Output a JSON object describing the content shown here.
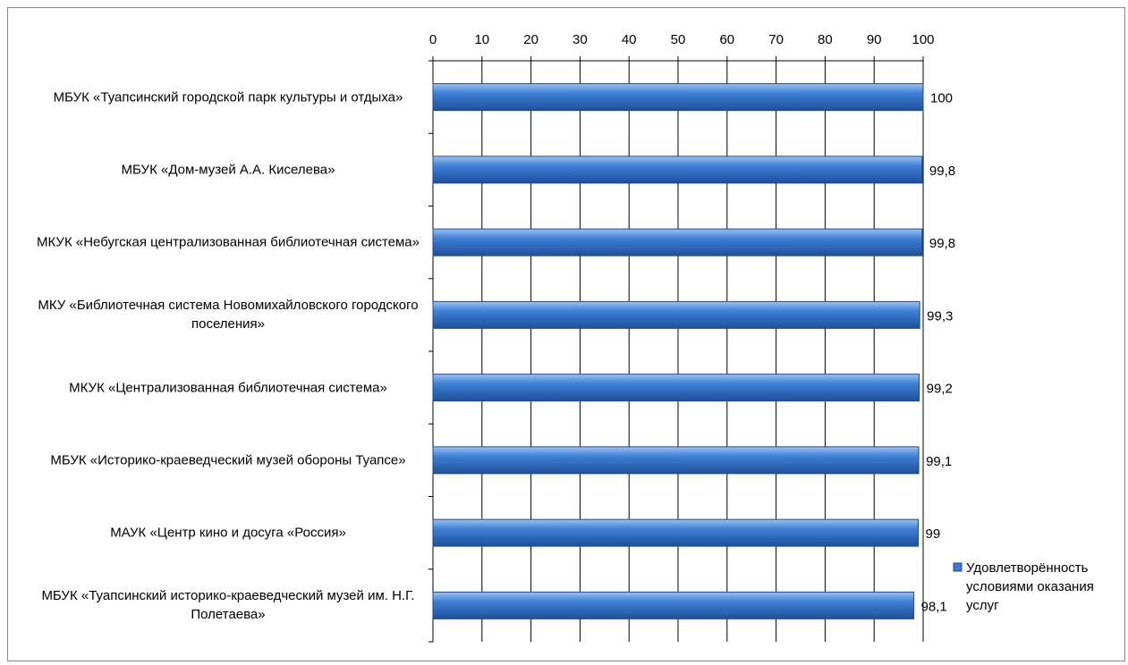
{
  "chart_data": {
    "type": "bar",
    "orientation": "horizontal",
    "categories": [
      "МБУК «Туапсинский городской парк культуры и отдыха»",
      "МБУК «Дом-музей А.А. Киселева»",
      "МКУК «Небугская централизованная библиотечная система»",
      "МКУ «Библиотечная система Новомихайловского городского поселения»",
      "МКУК «Централизованная библиотечная система»",
      "МБУК «Историко-краеведческий музей обороны Туапсе»",
      "МАУК «Центр кино и досуга «Россия»",
      "МБУК «Туапсинский историко-краеведческий музей им. Н.Г. Полетаева»"
    ],
    "series": [
      {
        "name": "Удовлетворённость условиями оказания услуг",
        "color": "#3a7bd5",
        "values": [
          100,
          99.8,
          99.8,
          99.3,
          99.2,
          99.1,
          99,
          98.1
        ],
        "value_labels": [
          "100",
          "99,8",
          "99,8",
          "99,3",
          "99,2",
          "99,1",
          "99",
          "98,1"
        ]
      }
    ],
    "xlim": [
      0,
      100
    ],
    "xticks": [
      0,
      10,
      20,
      30,
      40,
      50,
      60,
      70,
      80,
      90,
      100
    ],
    "grid": true,
    "legend": "right"
  }
}
